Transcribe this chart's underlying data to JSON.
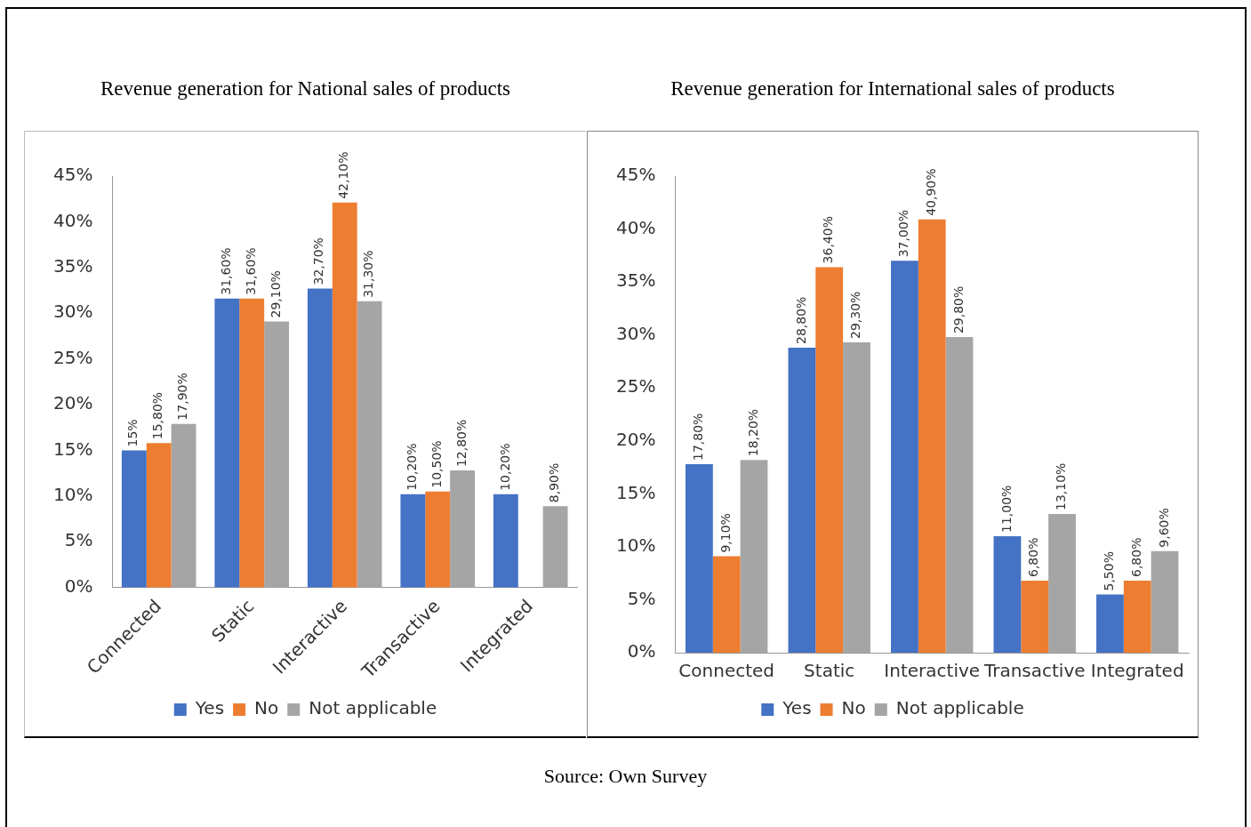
{
  "chart_data": [
    {
      "type": "bar",
      "title": "Revenue generation for National sales of products",
      "categories": [
        "Connected",
        "Static",
        "Interactive",
        "Transactive",
        "Integrated"
      ],
      "series": [
        {
          "name": "Yes",
          "color": "#4472c4",
          "values": [
            15,
            31.6,
            32.7,
            10.2,
            10.2
          ],
          "value_labels": [
            "15%",
            "31,60%",
            "32,70%",
            "10,20%",
            "10,20%"
          ]
        },
        {
          "name": "No",
          "color": "#ed7d31",
          "values": [
            15.8,
            31.6,
            42.1,
            10.5,
            null
          ],
          "value_labels": [
            "15,80%",
            "31,60%",
            "42,10%",
            "10,50%",
            null
          ]
        },
        {
          "name": "Not applicable",
          "color": "#a5a5a5",
          "values": [
            17.9,
            29.1,
            31.3,
            12.8,
            8.9
          ],
          "value_labels": [
            "17,90%",
            "29,10%",
            "31,30%",
            "12,80%",
            "8,90%"
          ]
        }
      ],
      "ylim": [
        0,
        45
      ],
      "yticks": [
        {
          "value": 0,
          "label": "0%"
        },
        {
          "value": 5,
          "label": "5%"
        },
        {
          "value": 10,
          "label": "10%"
        },
        {
          "value": 15,
          "label": "15%"
        },
        {
          "value": 20,
          "label": "20%"
        },
        {
          "value": 25,
          "label": "25%"
        },
        {
          "value": 30,
          "label": "30%"
        },
        {
          "value": 35,
          "label": "35%"
        },
        {
          "value": 40,
          "label": "40%"
        },
        {
          "value": 45,
          "label": "45%"
        }
      ],
      "grid": false,
      "legend": "bottom"
    },
    {
      "type": "bar",
      "title": "Revenue generation for International sales of products",
      "categories": [
        "Connected",
        "Static",
        "Interactive",
        "Transactive",
        "Integrated"
      ],
      "series": [
        {
          "name": "Yes",
          "color": "#4472c4",
          "values": [
            17.8,
            28.8,
            37.0,
            11.0,
            5.5
          ],
          "value_labels": [
            "17,80%",
            "28,80%",
            "37,00%",
            "11,00%",
            "5,50%"
          ]
        },
        {
          "name": "No",
          "color": "#ed7d31",
          "values": [
            9.1,
            36.4,
            40.9,
            6.8,
            6.8
          ],
          "value_labels": [
            "9,10%",
            "36,40%",
            "40,90%",
            "6,80%",
            "6,80%"
          ]
        },
        {
          "name": "Not applicable",
          "color": "#a5a5a5",
          "values": [
            18.2,
            29.3,
            29.8,
            13.1,
            9.6
          ],
          "value_labels": [
            "18,20%",
            "29,30%",
            "29,80%",
            "13,10%",
            "9,60%"
          ]
        }
      ],
      "ylim": [
        0,
        45
      ],
      "yticks": [
        {
          "value": 0,
          "label": "0%"
        },
        {
          "value": 5,
          "label": "5%"
        },
        {
          "value": 10,
          "label": "10%"
        },
        {
          "value": 15,
          "label": "15%"
        },
        {
          "value": 20,
          "label": "20%"
        },
        {
          "value": 25,
          "label": "25%"
        },
        {
          "value": 30,
          "label": "30%"
        },
        {
          "value": 35,
          "label": "35%"
        },
        {
          "value": 40,
          "label": "40%"
        },
        {
          "value": 45,
          "label": "45%"
        }
      ],
      "grid": false,
      "legend": "bottom",
      "annotations": [
        "Source: Own Survey"
      ]
    }
  ]
}
